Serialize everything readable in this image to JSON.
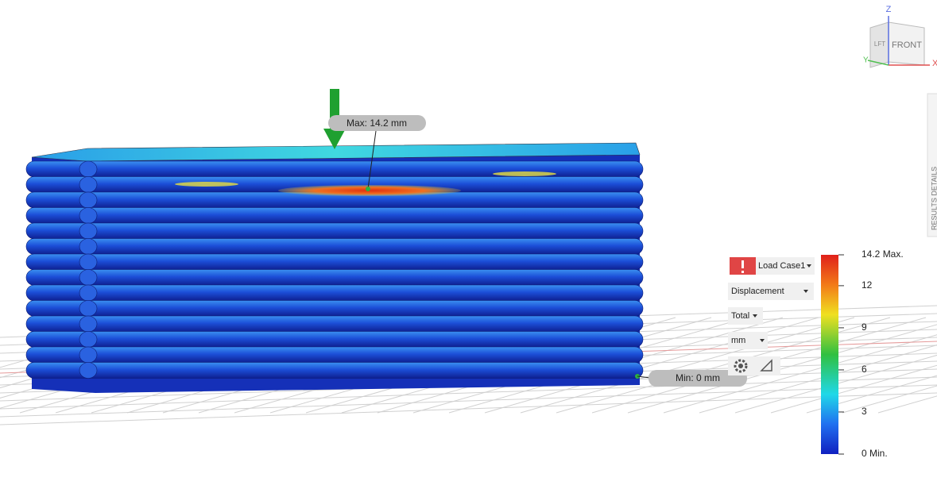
{
  "viewcube": {
    "z": "Z",
    "x": "X",
    "y": "Y",
    "front": "FRONT",
    "left": "LFT"
  },
  "callouts": {
    "max": "Max: 14.2 mm",
    "min": "Min: 0 mm"
  },
  "side_tab": "RESULTS DETAILS",
  "controls": {
    "load_case": "Load Case1",
    "result": "Displacement",
    "component": "Total",
    "unit": "mm"
  },
  "legend": {
    "lim": [
      0,
      14.2
    ],
    "ticks": [
      {
        "value": 14.2,
        "label": "14.2 Max."
      },
      12,
      9,
      6,
      3,
      {
        "value": 0,
        "label": "0 Min."
      }
    ]
  }
}
